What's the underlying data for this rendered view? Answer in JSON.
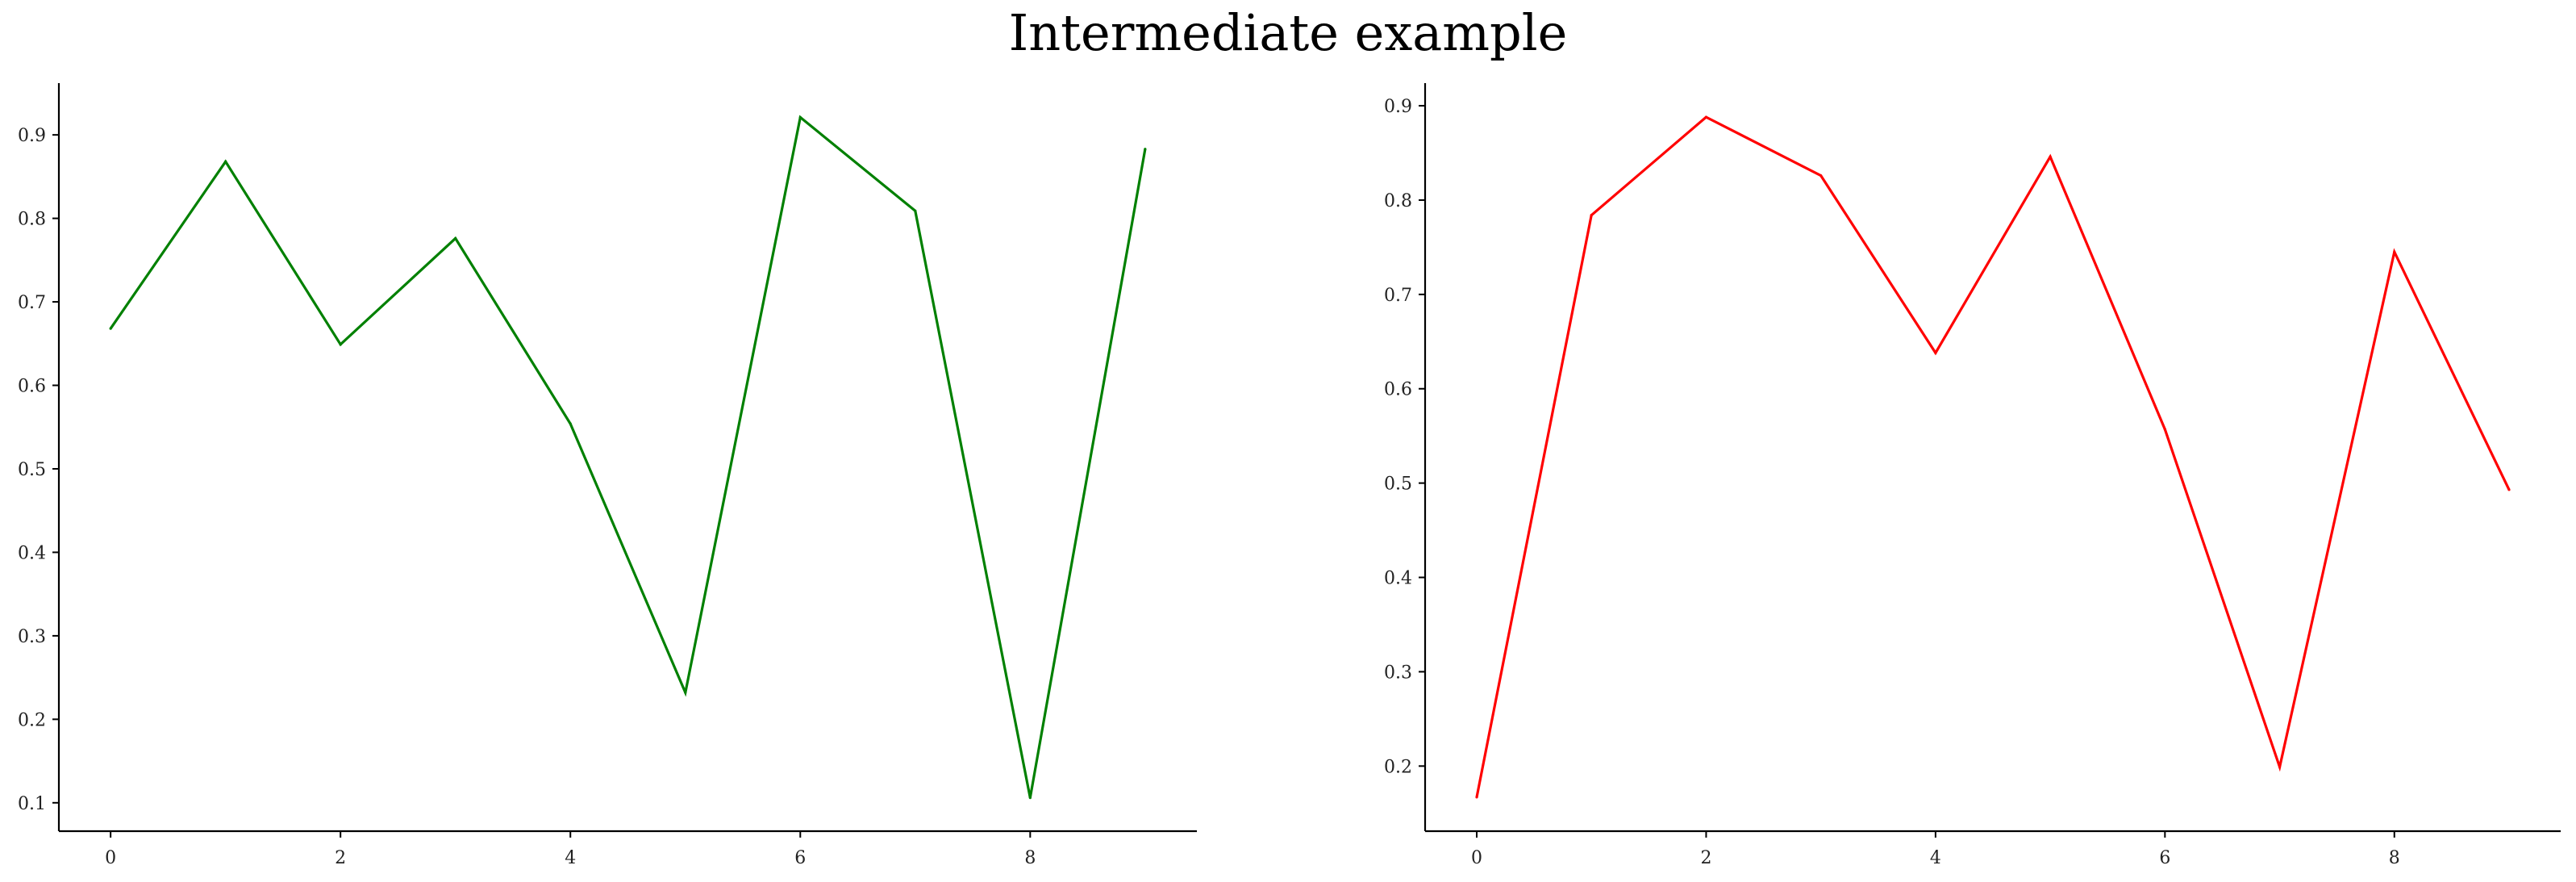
{
  "title": "Intermediate example",
  "chart_data": [
    {
      "type": "line",
      "x": [
        0,
        1,
        2,
        3,
        4,
        5,
        6,
        7,
        8,
        9
      ],
      "series": [
        {
          "values": [
            0.668,
            0.868,
            0.649,
            0.776,
            0.554,
            0.232,
            0.921,
            0.809,
            0.106,
            0.883
          ],
          "color": "#008000"
        }
      ],
      "xlim": [
        -0.45,
        9.45
      ],
      "ylim": [
        0.066,
        0.962
      ],
      "xticks": [
        0,
        2,
        4,
        6,
        8
      ],
      "yticks": [
        0.1,
        0.2,
        0.3,
        0.4,
        0.5,
        0.6,
        0.7,
        0.8,
        0.9
      ],
      "xtick_labels": [
        "0",
        "2",
        "4",
        "6",
        "8"
      ],
      "ytick_labels": [
        "0.1",
        "0.2",
        "0.3",
        "0.4",
        "0.5",
        "0.6",
        "0.7",
        "0.8",
        "0.9"
      ],
      "grid": false,
      "spines": [
        "left",
        "bottom"
      ]
    },
    {
      "type": "line",
      "x": [
        0,
        1,
        2,
        3,
        4,
        5,
        6,
        7,
        8,
        9
      ],
      "series": [
        {
          "values": [
            0.167,
            0.784,
            0.888,
            0.826,
            0.638,
            0.846,
            0.557,
            0.199,
            0.745,
            0.493
          ],
          "color": "#ff0000"
        }
      ],
      "xlim": [
        -0.45,
        9.45
      ],
      "ylim": [
        0.131,
        0.924
      ],
      "xticks": [
        0,
        2,
        4,
        6,
        8
      ],
      "yticks": [
        0.2,
        0.3,
        0.4,
        0.5,
        0.6,
        0.7,
        0.8,
        0.9
      ],
      "xtick_labels": [
        "0",
        "2",
        "4",
        "6",
        "8"
      ],
      "ytick_labels": [
        "0.2",
        "0.3",
        "0.4",
        "0.5",
        "0.6",
        "0.7",
        "0.8",
        "0.9"
      ],
      "grid": false,
      "spines": [
        "left",
        "bottom"
      ]
    }
  ]
}
